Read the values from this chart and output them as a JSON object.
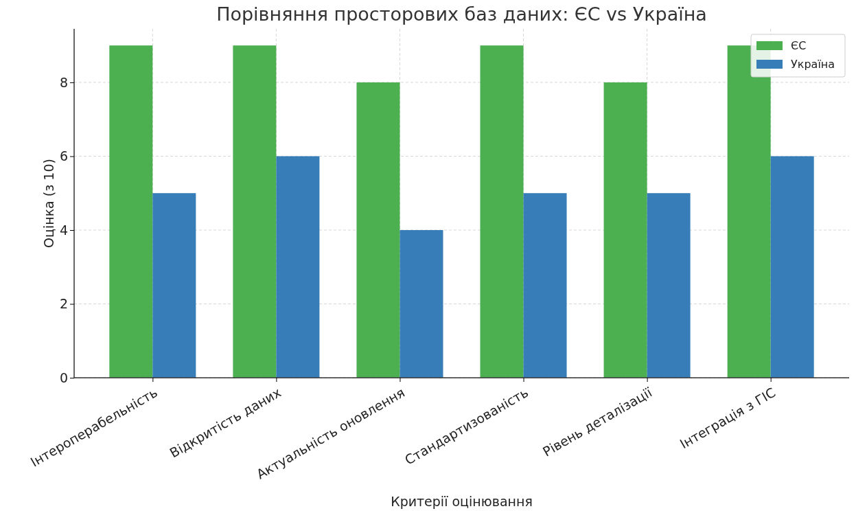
{
  "chart_data": {
    "type": "bar",
    "title": "Порівняння просторових баз даних: ЄС vs Україна",
    "xlabel": "Критерії оцінювання",
    "ylabel": "Оцінка (з 10)",
    "categories": [
      "Інтероперабельність",
      "Відкритість даних",
      "Актуальність оновлення",
      "Стандартизованість",
      "Рівень деталізації",
      "Інтеграція з ГІС"
    ],
    "series": [
      {
        "name": "ЄС",
        "color": "#4caf50",
        "values": [
          9,
          9,
          8,
          9,
          8,
          9
        ]
      },
      {
        "name": "Україна",
        "color": "#377eb8",
        "values": [
          5,
          6,
          4,
          5,
          5,
          6
        ]
      }
    ],
    "ylim": [
      0,
      9.45
    ],
    "yticks": [
      0,
      2,
      4,
      6,
      8
    ],
    "grid": true,
    "legend": "top right"
  }
}
